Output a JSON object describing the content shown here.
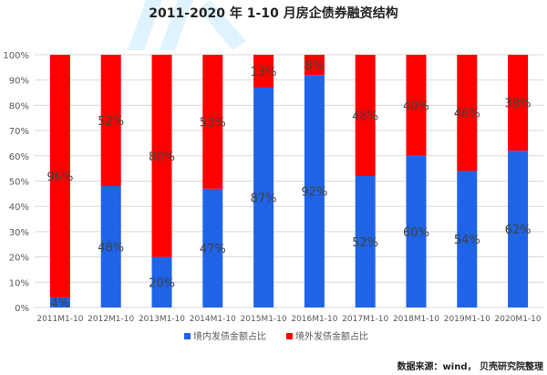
{
  "title": "2011-2020 年 1-10 月房企债券融资结构",
  "source": "数据来源：wind， 贝壳研究院整理",
  "colors": {
    "domestic": "#1f63e6",
    "overseas": "#ff0000",
    "grid": "#d9d9d9",
    "axis_text": "#595959",
    "label_text": "#404040",
    "watermark": "#dff3ff"
  },
  "chart_data": {
    "type": "bar",
    "stacked": true,
    "title": "2011-2020 年 1-10 月房企债券融资结构",
    "categories": [
      "2011M1-10",
      "2012M1-10",
      "2013M1-10",
      "2014M1-10",
      "2015M1-10",
      "2016M1-10",
      "2017M1-10",
      "2018M1-10",
      "2019M1-10",
      "2020M1-10"
    ],
    "series": [
      {
        "name": "境内发债金额占比",
        "color": "#1f63e6",
        "values": [
          4,
          48,
          20,
          47,
          87,
          92,
          52,
          60,
          54,
          62
        ],
        "labels": [
          "4%",
          "48%",
          "20%",
          "47%",
          "87%",
          "92%",
          "52%",
          "60%",
          "54%",
          "62%"
        ]
      },
      {
        "name": "境外发债金额占比",
        "color": "#ff0000",
        "values": [
          96,
          52,
          80,
          53,
          13,
          8,
          48,
          40,
          46,
          38
        ],
        "labels": [
          "96%",
          "52%",
          "80%",
          "53%",
          "13%",
          "8%",
          "48%",
          "40%",
          "46%",
          "38%"
        ]
      }
    ],
    "yticks": [
      "0%",
      "10%",
      "20%",
      "30%",
      "40%",
      "50%",
      "60%",
      "70%",
      "80%",
      "90%",
      "100%"
    ],
    "ylim": [
      0,
      100
    ],
    "grid": true,
    "legend": "bottom"
  }
}
